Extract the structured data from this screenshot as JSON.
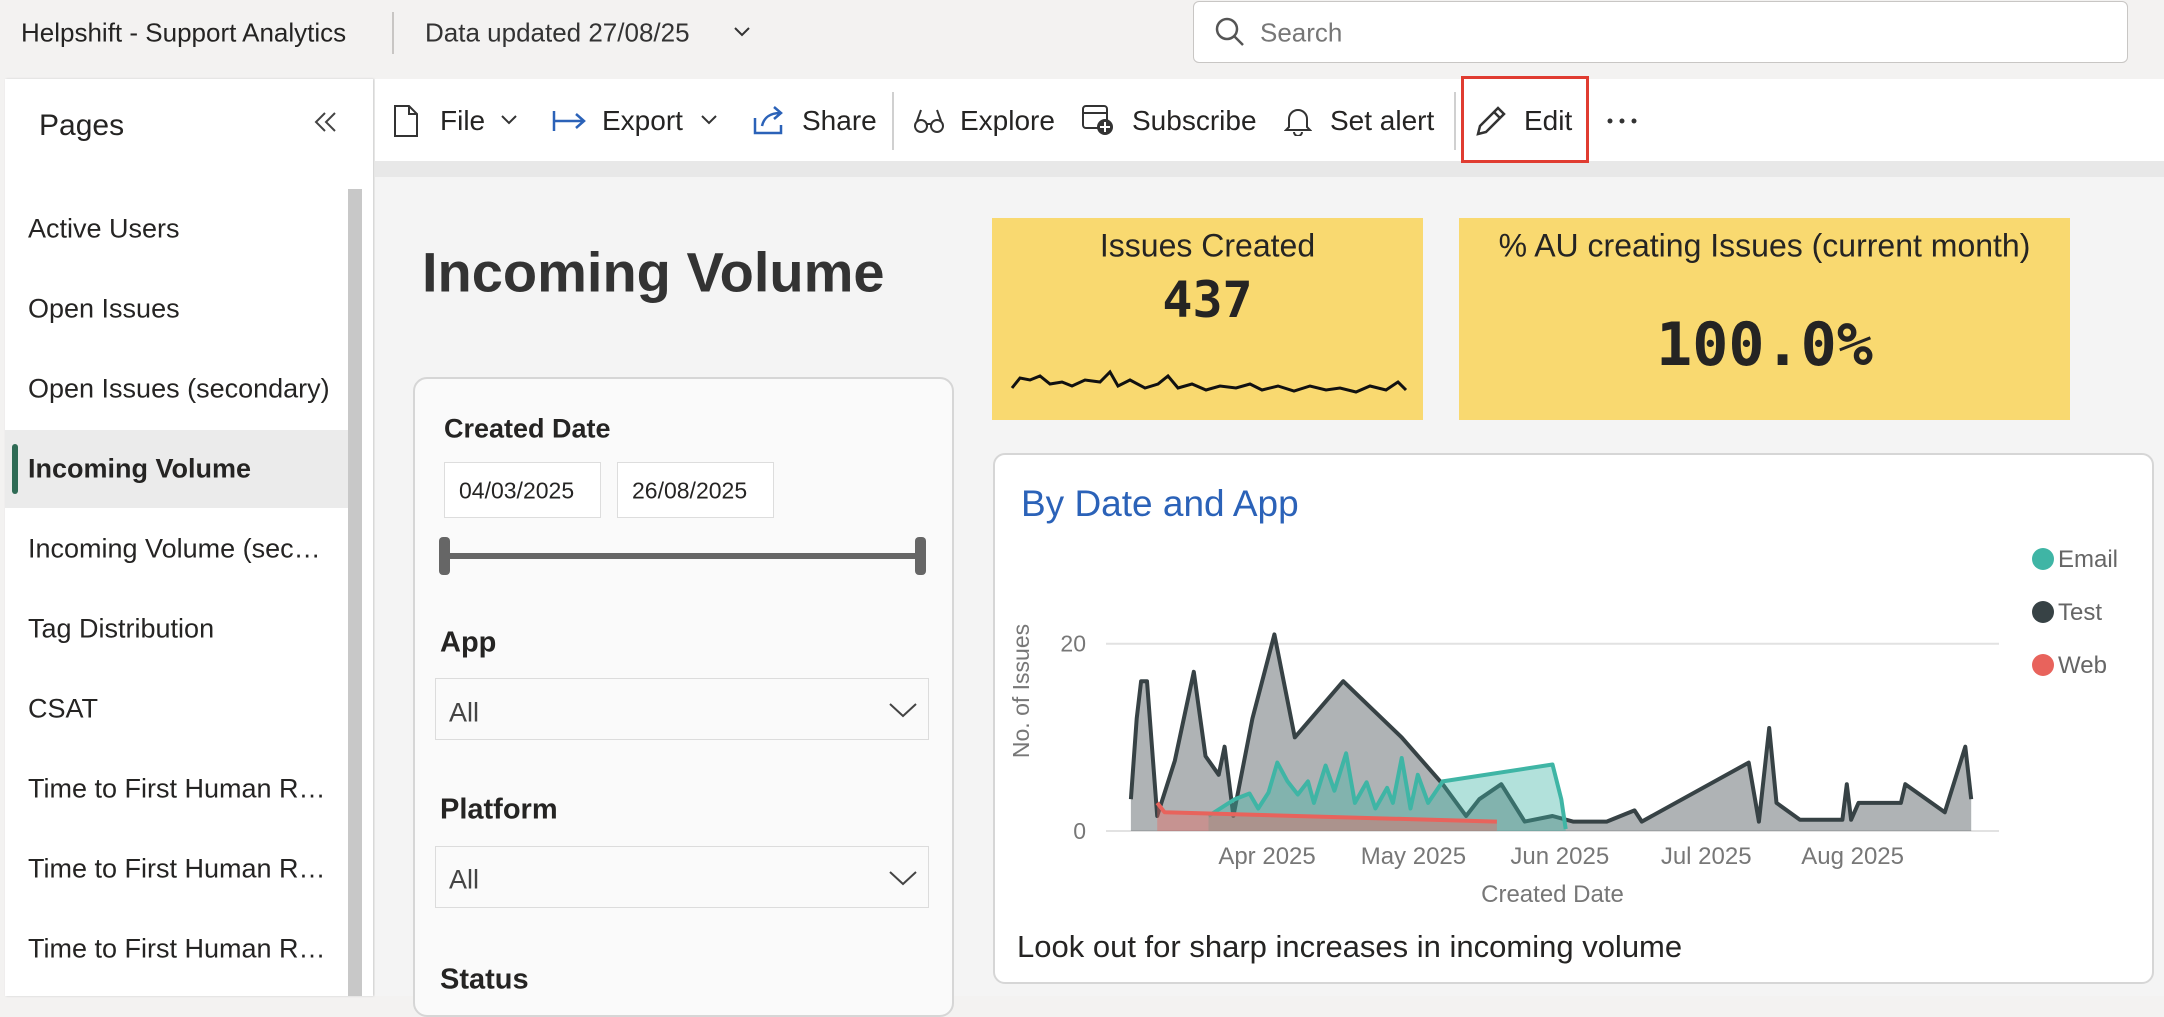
{
  "header": {
    "title": "Helpshift - Support Analytics",
    "data_updated": "Data updated 27/08/25",
    "search_placeholder": "Search"
  },
  "sidebar": {
    "title": "Pages",
    "pages": [
      "Active Users",
      "Open Issues",
      "Open Issues (secondary)",
      "Incoming Volume",
      "Incoming Volume (sec…",
      "Tag Distribution",
      "CSAT",
      "Time to First Human R…",
      "Time to First Human R…",
      "Time to First Human R…"
    ]
  },
  "toolbar": {
    "file": "File",
    "export": "Export",
    "share": "Share",
    "explore": "Explore",
    "subscribe": "Subscribe",
    "set_alert": "Set alert",
    "edit": "Edit"
  },
  "report": {
    "title": "Incoming Volume",
    "filters": {
      "created_date": {
        "label": "Created Date",
        "start": "04/03/2025",
        "end": "26/08/2025"
      },
      "app": {
        "label": "App",
        "value": "All"
      },
      "platform": {
        "label": "Platform",
        "value": "All"
      },
      "status": {
        "label": "Status"
      }
    },
    "kpis": [
      {
        "title": "Issues Created",
        "value": 437
      },
      {
        "title": "% AU creating Issues (current month)",
        "value": "100.0%"
      }
    ],
    "footnote": "Look out for sharp increases in incoming volume"
  },
  "chart_data": {
    "type": "area",
    "title": "By Date and App",
    "xlabel": "Created Date",
    "ylabel": "No. of Issues",
    "xlim": [
      2.9,
      9.0
    ],
    "ylim": [
      0,
      22
    ],
    "xticks": [
      {
        "value": 4,
        "label": "Apr 2025"
      },
      {
        "value": 5,
        "label": "May 2025"
      },
      {
        "value": 6,
        "label": "Jun 2025"
      },
      {
        "value": 7,
        "label": "Jul 2025"
      },
      {
        "value": 8,
        "label": "Aug 2025"
      }
    ],
    "yticks": [
      0,
      20
    ],
    "grid": true,
    "legend": "right",
    "series": [
      {
        "name": "Email",
        "color": "#3fb5a5",
        "x": [
          3.6,
          3.78,
          3.88,
          3.94,
          4.01,
          4.07,
          4.14,
          4.21,
          4.28,
          4.32,
          4.4,
          4.46,
          4.54,
          4.6,
          4.68,
          4.74,
          4.82,
          4.86,
          4.92,
          4.98,
          5.03,
          5.1,
          5.2,
          5.95,
          6.01,
          6.04
        ],
        "values": [
          1.6,
          3.4,
          4,
          2.4,
          4.1,
          7.3,
          5.3,
          3.9,
          5.3,
          3,
          7,
          4.3,
          8.3,
          3,
          5.2,
          2.4,
          4.6,
          3,
          7.8,
          2.4,
          6,
          3,
          5.3,
          7.1,
          3.4,
          0.2
        ]
      },
      {
        "name": "Test",
        "color": "#374245",
        "x": [
          3.07,
          3.11,
          3.14,
          3.18,
          3.25,
          3.37,
          3.5,
          3.58,
          3.67,
          3.71,
          3.77,
          3.9,
          4.05,
          4.19,
          4.52,
          4.92,
          5.2,
          5.36,
          5.45,
          5.6,
          5.76,
          5.95,
          6.09,
          6.32,
          6.51,
          6.56,
          7.29,
          7.36,
          7.43,
          7.48,
          7.64,
          7.93,
          7.96,
          7.99,
          8.04,
          8.33,
          8.36,
          8.63,
          8.77,
          8.81
        ],
        "values": [
          3.4,
          12,
          16,
          16,
          1.6,
          7.5,
          17,
          8,
          6,
          9,
          1.6,
          12,
          21,
          10,
          16,
          10,
          5,
          1.6,
          3.4,
          5,
          1,
          1.6,
          1,
          1,
          2.2,
          1,
          7.3,
          1,
          11,
          3,
          1.2,
          1.2,
          5,
          1.2,
          3,
          3,
          5,
          2,
          9,
          3.4
        ]
      },
      {
        "name": "Web",
        "color": "#e8635c",
        "x": [
          3.25,
          3.3,
          5.57
        ],
        "values": [
          3,
          2,
          1
        ]
      }
    ]
  }
}
